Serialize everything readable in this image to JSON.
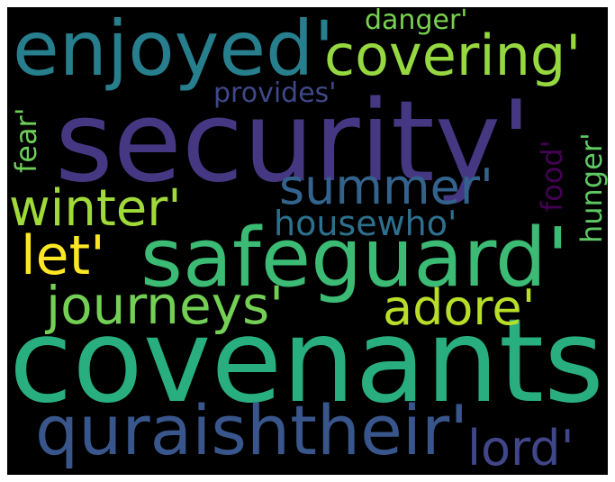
{
  "word_cloud": {
    "background_color": "#000000",
    "words": [
      {
        "id": "security",
        "text": "security'",
        "color": "#453781",
        "orientation": "horizontal"
      },
      {
        "id": "covenants",
        "text": "covenants'",
        "color": "#29AF7F",
        "orientation": "horizontal"
      },
      {
        "id": "safeguard",
        "text": "safeguard'",
        "color": "#3CBB75",
        "orientation": "horizontal"
      },
      {
        "id": "enjoyed",
        "text": "enjoyed'",
        "color": "#277F8E",
        "orientation": "horizontal"
      },
      {
        "id": "quraishtheir",
        "text": "quraishtheir'",
        "color": "#39568C",
        "orientation": "horizontal"
      },
      {
        "id": "covering",
        "text": "covering'",
        "color": "#95D840",
        "orientation": "horizontal"
      },
      {
        "id": "winter",
        "text": "winter'",
        "color": "#A0DA39",
        "orientation": "horizontal"
      },
      {
        "id": "summer",
        "text": "summer'",
        "color": "#33638D",
        "orientation": "horizontal"
      },
      {
        "id": "journeys",
        "text": "journeys'",
        "color": "#73D055",
        "orientation": "horizontal"
      },
      {
        "id": "adore",
        "text": "adore'",
        "color": "#B8DE29",
        "orientation": "horizontal"
      },
      {
        "id": "let",
        "text": "let'",
        "color": "#FDE725",
        "orientation": "horizontal"
      },
      {
        "id": "housewho",
        "text": "housewho'",
        "color": "#2D708E",
        "orientation": "horizontal"
      },
      {
        "id": "lord",
        "text": "lord'",
        "color": "#404688",
        "orientation": "horizontal"
      },
      {
        "id": "provides",
        "text": "provides'",
        "color": "#3F4889",
        "orientation": "horizontal"
      },
      {
        "id": "danger",
        "text": "danger'",
        "color": "#7AD151",
        "orientation": "horizontal"
      },
      {
        "id": "fear",
        "text": "fear'",
        "color": "#6ECE58",
        "orientation": "vertical"
      },
      {
        "id": "food",
        "text": "food'",
        "color": "#440154",
        "orientation": "vertical"
      },
      {
        "id": "hunger",
        "text": "hunger'",
        "color": "#5EC962",
        "orientation": "vertical"
      }
    ]
  }
}
